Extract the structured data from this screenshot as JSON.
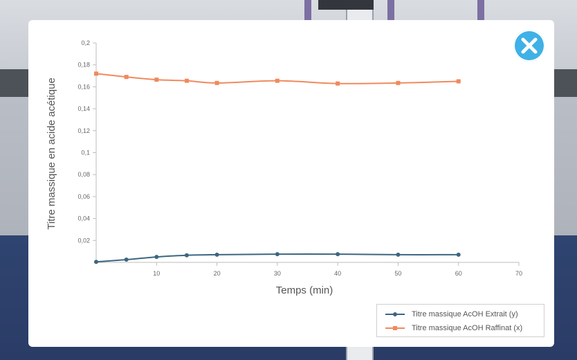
{
  "colors": {
    "extrait": "#3d6680",
    "raffinat": "#f08a5d",
    "close_button": "#3fb1e6"
  },
  "close_button": {
    "icon": "close-icon"
  },
  "chart_data": {
    "type": "line",
    "xlabel": "Temps (min)",
    "ylabel": "Titre massique en acide acétique",
    "xlim": [
      0,
      70
    ],
    "ylim": [
      0,
      0.2
    ],
    "x_ticks": [
      "10",
      "20",
      "30",
      "40",
      "50",
      "60",
      "70"
    ],
    "y_ticks": [
      "0,02",
      "0,04",
      "0,06",
      "0,08",
      "0,1",
      "0,12",
      "0,14",
      "0,16",
      "0,18",
      "0,2"
    ],
    "grid": false,
    "legend_position": "bottom-right",
    "series": [
      {
        "name": "Titre massique AcOH Extrait (y)",
        "marker": "circle",
        "x": [
          0,
          5,
          10,
          15,
          20,
          30,
          40,
          50,
          60
        ],
        "y": [
          0.0005,
          0.0025,
          0.005,
          0.0065,
          0.007,
          0.0075,
          0.0075,
          0.007,
          0.007
        ]
      },
      {
        "name": "Titre massique AcOH Raffinat (x)",
        "marker": "square",
        "x": [
          0,
          5,
          10,
          15,
          20,
          30,
          40,
          50,
          60
        ],
        "y": [
          0.172,
          0.169,
          0.1665,
          0.1655,
          0.1635,
          0.1655,
          0.163,
          0.1635,
          0.165
        ]
      }
    ]
  }
}
